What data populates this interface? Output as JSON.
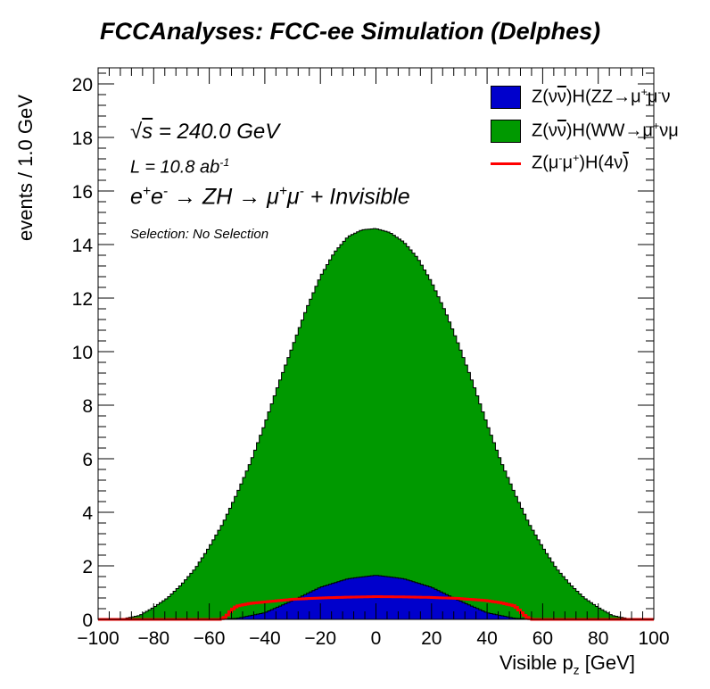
{
  "title": "FCCAnalyses: FCC-ee Simulation (Delphes)",
  "annotations": {
    "sqrt_s_symbol": "s",
    "sqrt_s_value": " = 240.0 GeV",
    "lumi_text": "L = 10.8 ab",
    "lumi_exp": "-1",
    "selection": "Selection: No Selection"
  },
  "legend": [
    {
      "label_pre": "Z(ν",
      "label_bar": "ν",
      "label_post": ")H(ZZ→μ",
      "sup1": "+",
      "mid": "μ",
      "sup2": "-",
      "tail": "ν",
      "color": "#0000cc",
      "style": "fill"
    },
    {
      "label_pre": "Z(ν",
      "label_bar": "ν",
      "label_post": ")H(WW→μ",
      "sup1": "+",
      "mid": "νμ",
      "sup2": "",
      "tail": "",
      "color": "#009900",
      "style": "fill"
    },
    {
      "label_pre": "Z(μ",
      "sup_a": "-",
      "label_mid": "μ",
      "sup_b": "+",
      "label_post": ")H(4ν",
      "color": "#ff0000",
      "style": "line"
    }
  ],
  "colors": {
    "zz": "#0000cc",
    "ww": "#009900",
    "signal": "#ff0000",
    "frame": "#000000"
  },
  "chart_data": {
    "type": "area",
    "title": "FCCAnalyses: FCC-ee Simulation (Delphes)",
    "xlabel": "Visible p_z [GeV]",
    "ylabel": "events / 1.0 GeV",
    "xlim": [
      -100,
      100
    ],
    "ylim": [
      0,
      20.6
    ],
    "bin_width": 1.0,
    "x_ticks": [
      -100,
      -80,
      -60,
      -40,
      -20,
      0,
      20,
      40,
      60,
      80,
      100
    ],
    "y_ticks": [
      0,
      2,
      4,
      6,
      8,
      10,
      12,
      14,
      16,
      18,
      20
    ],
    "stacked": true,
    "series": [
      {
        "name": "Z(νν̄)H(ZZ→μ⁺μ⁻ν...",
        "kind": "stacked-fill",
        "x": [
          -60,
          -50,
          -40,
          -30,
          -20,
          -10,
          0,
          10,
          20,
          30,
          40,
          50,
          60
        ],
        "y": [
          0.0,
          0.04,
          0.25,
          0.7,
          1.2,
          1.52,
          1.65,
          1.52,
          1.2,
          0.7,
          0.25,
          0.04,
          0.0
        ]
      },
      {
        "name": "Z(νν̄)H(WW→μ⁺νμ...",
        "kind": "stacked-fill-total",
        "x": [
          -92,
          -85,
          -80,
          -75,
          -70,
          -65,
          -60,
          -55,
          -50,
          -45,
          -40,
          -35,
          -30,
          -25,
          -20,
          -15,
          -10,
          -5,
          0,
          5,
          10,
          15,
          20,
          25,
          30,
          35,
          40,
          45,
          50,
          55,
          60,
          65,
          70,
          75,
          80,
          85,
          92
        ],
        "y": [
          0.0,
          0.15,
          0.45,
          0.8,
          1.3,
          1.9,
          2.7,
          3.6,
          4.7,
          5.9,
          7.3,
          8.8,
          10.2,
          11.6,
          12.8,
          13.7,
          14.3,
          14.55,
          14.6,
          14.45,
          14.1,
          13.5,
          12.6,
          11.5,
          10.2,
          8.8,
          7.3,
          5.9,
          4.7,
          3.6,
          2.7,
          1.9,
          1.3,
          0.8,
          0.45,
          0.15,
          0.0
        ]
      },
      {
        "name": "Z(μ⁻μ⁺)H(4ν)",
        "kind": "line",
        "x": [
          -100,
          -56,
          -54,
          -52,
          -50,
          -45,
          -40,
          -30,
          -20,
          -10,
          0,
          10,
          20,
          30,
          40,
          45,
          50,
          52,
          54,
          56,
          100
        ],
        "y": [
          0.0,
          0.0,
          0.1,
          0.35,
          0.5,
          0.6,
          0.65,
          0.75,
          0.8,
          0.83,
          0.85,
          0.84,
          0.82,
          0.78,
          0.7,
          0.62,
          0.5,
          0.3,
          0.1,
          0.0,
          0.0
        ]
      }
    ]
  }
}
